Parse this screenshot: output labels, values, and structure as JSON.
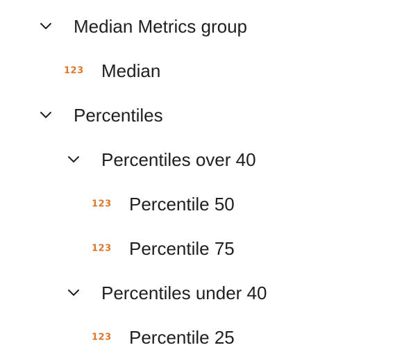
{
  "colors": {
    "text": "#1f1f1f",
    "chevron": "#1f1f1f",
    "number_icon": "#d9772b"
  },
  "tree": [
    {
      "kind": "group",
      "label": "Median Metrics group",
      "icon": "chevron-down-icon",
      "expanded": true
    },
    {
      "kind": "metric",
      "label": "Median",
      "icon": "number-type-icon",
      "icon_text": "123"
    },
    {
      "kind": "group",
      "label": "Percentiles",
      "icon": "chevron-down-icon",
      "expanded": true
    },
    {
      "kind": "group",
      "label": "Percentiles over 40",
      "icon": "chevron-down-icon",
      "expanded": true
    },
    {
      "kind": "metric",
      "label": "Percentile 50",
      "icon": "number-type-icon",
      "icon_text": "123"
    },
    {
      "kind": "metric",
      "label": "Percentile 75",
      "icon": "number-type-icon",
      "icon_text": "123"
    },
    {
      "kind": "group",
      "label": "Percentiles under 40",
      "icon": "chevron-down-icon",
      "expanded": true
    },
    {
      "kind": "metric",
      "label": "Percentile 25",
      "icon": "number-type-icon",
      "icon_text": "123"
    }
  ]
}
